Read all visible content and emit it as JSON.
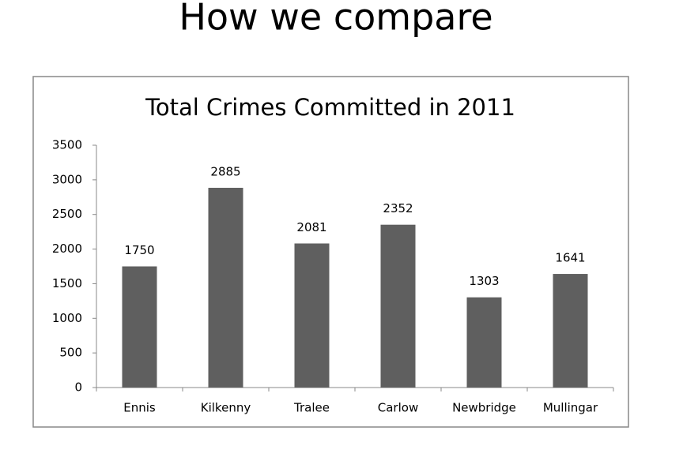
{
  "slide_title": "How we compare",
  "chart_data": {
    "type": "bar",
    "title": "Total Crimes Committed in 2011",
    "categories": [
      "Ennis",
      "Kilkenny",
      "Tralee",
      "Carlow",
      "Newbridge",
      "Mullingar"
    ],
    "values": [
      1750,
      2885,
      2081,
      2352,
      1303,
      1641
    ],
    "color": "#5f5f5f",
    "ylim": [
      0,
      3500
    ],
    "yticks": [
      0,
      500,
      1000,
      1500,
      2000,
      2500,
      3000,
      3500
    ],
    "grid": false
  }
}
